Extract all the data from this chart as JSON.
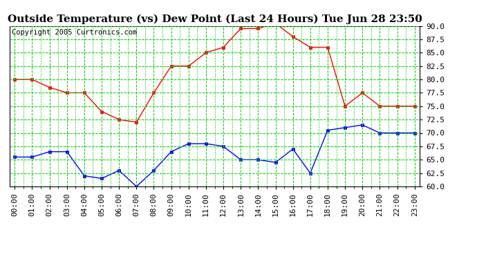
{
  "title": "Outside Temperature (vs) Dew Point (Last 24 Hours) Tue Jun 28 23:50",
  "copyright": "Copyright 2005 Curtronics.com",
  "hours": [
    0,
    1,
    2,
    3,
    4,
    5,
    6,
    7,
    8,
    9,
    10,
    11,
    12,
    13,
    14,
    15,
    16,
    17,
    18,
    19,
    20,
    21,
    22,
    23
  ],
  "temp": [
    80.0,
    80.0,
    78.5,
    77.5,
    77.5,
    74.0,
    72.5,
    72.0,
    77.5,
    82.5,
    82.5,
    85.0,
    86.0,
    89.5,
    89.5,
    90.5,
    88.0,
    86.0,
    86.0,
    75.0,
    77.5,
    75.0,
    75.0,
    75.0
  ],
  "dew": [
    65.5,
    65.5,
    66.5,
    66.5,
    62.0,
    61.5,
    63.0,
    60.0,
    63.0,
    66.5,
    68.0,
    68.0,
    67.5,
    65.0,
    65.0,
    64.5,
    67.0,
    62.5,
    70.5,
    71.0,
    71.5,
    70.0,
    70.0,
    70.0
  ],
  "temp_color": "#ff0000",
  "dew_color": "#0000ff",
  "bg_color": "#ffffff",
  "plot_bg_color": "#ffffff",
  "grid_color": "#00cc00",
  "ylim": [
    60.0,
    90.0
  ],
  "yticks": [
    60.0,
    62.5,
    65.0,
    67.5,
    70.0,
    72.5,
    75.0,
    77.5,
    80.0,
    82.5,
    85.0,
    87.5,
    90.0
  ],
  "title_fontsize": 11,
  "copyright_fontsize": 7.5,
  "tick_fontsize": 8
}
